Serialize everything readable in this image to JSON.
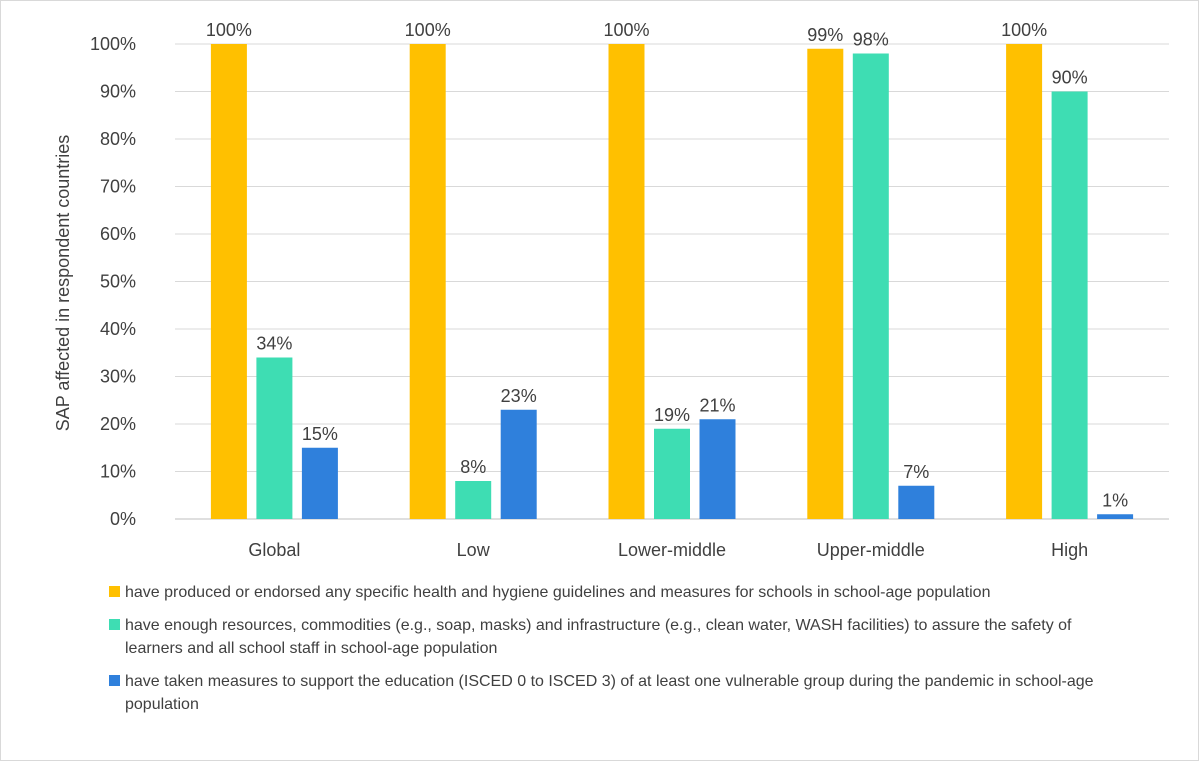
{
  "chart_data": {
    "type": "bar",
    "categories": [
      "Global",
      "Low",
      "Lower-middle",
      "Upper-middle",
      "High"
    ],
    "series": [
      {
        "name": "have produced or endorsed any specific health and hygiene guidelines and measures for schools in school-age population",
        "color": "#FFC000",
        "values": [
          100,
          100,
          100,
          99,
          100
        ]
      },
      {
        "name": "have enough resources, commodities (e.g., soap, masks) and infrastructure (e.g., clean water, WASH facilities) to assure the safety of learners and all school staff in school-age population",
        "color": "#3EDDB3",
        "values": [
          34,
          8,
          19,
          98,
          90
        ]
      },
      {
        "name": "have taken measures to support the education (ISCED 0 to ISCED 3) of at least one vulnerable group during the pandemic in school-age population",
        "color": "#2F80DC",
        "values": [
          15,
          23,
          21,
          7,
          1
        ]
      }
    ],
    "ylabel": "SAP affected in respondent countries",
    "ylim": [
      0,
      100
    ],
    "yticks": [
      "0%",
      "10%",
      "20%",
      "30%",
      "40%",
      "50%",
      "60%",
      "70%",
      "80%",
      "90%",
      "100%"
    ],
    "value_suffix": "%",
    "grid": true,
    "legend_position": "bottom"
  }
}
